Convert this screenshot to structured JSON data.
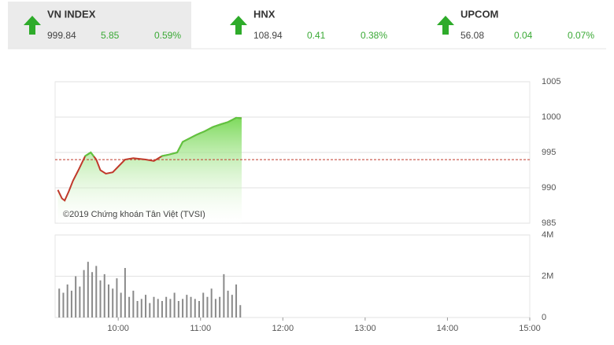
{
  "header": {
    "tickers": [
      {
        "name": "VN INDEX",
        "value": "999.84",
        "change": "5.85",
        "percent": "0.59%"
      },
      {
        "name": "HNX",
        "value": "108.94",
        "change": "0.41",
        "percent": "0.38%"
      },
      {
        "name": "UPCOM",
        "value": "56.08",
        "change": "0.04",
        "percent": "0.07%"
      }
    ]
  },
  "chart_data": [
    {
      "type": "line",
      "annotation": "©2019 Chứng khoán Tân Việt (TVSI)",
      "x": [
        556,
        559,
        561,
        564,
        567,
        571,
        576,
        580,
        584,
        587,
        591,
        596,
        600,
        605,
        611,
        620,
        626,
        632,
        637,
        643,
        647,
        652,
        657,
        663,
        669,
        675,
        680,
        686,
        690
      ],
      "series": [
        {
          "color": "#c0392b",
          "above_color": "#5cc840",
          "values": [
            989.7,
            988.5,
            988.2,
            989.5,
            991,
            992.5,
            994.5,
            995,
            994,
            992.5,
            992,
            992.2,
            993,
            994,
            994.2,
            994,
            993.8,
            994.5,
            994.7,
            995,
            996.5,
            997,
            997.5,
            998,
            998.6,
            999,
            999.3,
            999.9,
            999.84
          ]
        }
      ],
      "reference": 993.99,
      "reference_color": "#c0392b",
      "xlim": [
        554,
        900
      ],
      "ylim": [
        985,
        1005
      ],
      "yticks": [
        985,
        990,
        995,
        1000,
        1005
      ],
      "grid": true
    },
    {
      "type": "bar",
      "color": "#8a8a8a",
      "x": [
        557,
        560,
        563,
        566,
        569,
        572,
        575,
        578,
        581,
        584,
        587,
        590,
        593,
        596,
        599,
        602,
        605,
        608,
        611,
        614,
        617,
        620,
        623,
        626,
        629,
        632,
        635,
        638,
        641,
        644,
        647,
        650,
        653,
        656,
        659,
        662,
        665,
        668,
        671,
        674,
        677,
        680,
        683,
        686,
        689
      ],
      "values": [
        1.4,
        1.2,
        1.6,
        1.3,
        2.0,
        1.5,
        2.3,
        2.7,
        2.2,
        2.5,
        1.8,
        2.1,
        1.6,
        1.4,
        1.9,
        1.2,
        2.4,
        1.0,
        1.3,
        0.8,
        0.9,
        1.1,
        0.7,
        1.0,
        0.9,
        0.8,
        1.0,
        0.9,
        1.2,
        0.8,
        0.9,
        1.1,
        1.0,
        0.9,
        0.8,
        1.2,
        1.0,
        1.4,
        0.9,
        1.0,
        2.1,
        1.3,
        1.1,
        1.6,
        0.6
      ],
      "xlim": [
        554,
        900
      ],
      "xticks": [
        {
          "value": 600,
          "label": "10:00"
        },
        {
          "value": 660,
          "label": "11:00"
        },
        {
          "value": 720,
          "label": "12:00"
        },
        {
          "value": 780,
          "label": "13:00"
        },
        {
          "value": 840,
          "label": "14:00"
        },
        {
          "value": 900,
          "label": "15:00"
        }
      ],
      "ylim": [
        0,
        4
      ],
      "yticks": [
        0,
        {
          "value": 2,
          "label": "2M"
        },
        {
          "value": 4,
          "label": "4M"
        }
      ],
      "grid": true
    }
  ]
}
